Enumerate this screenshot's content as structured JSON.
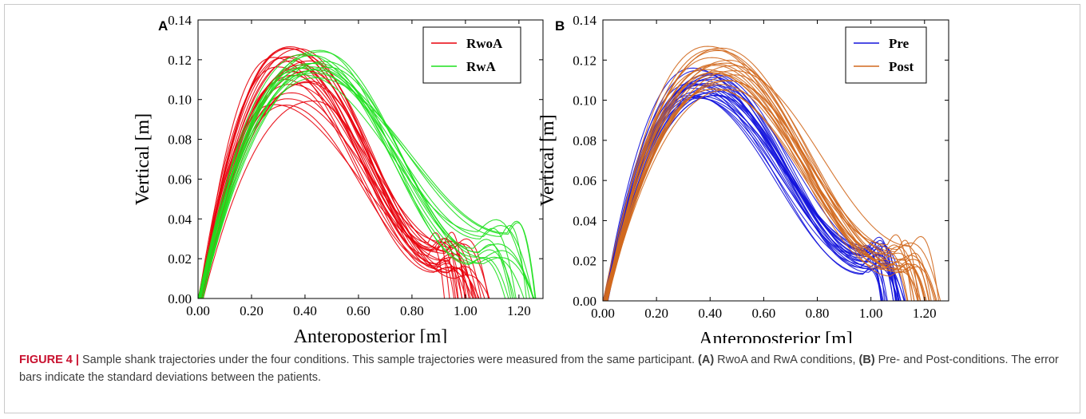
{
  "chart_data": [
    {
      "panel": "A",
      "type": "line",
      "xlabel": "Anteroposterior [m]",
      "ylabel": "Vertical [m]",
      "xlim": [
        0.0,
        1.29
      ],
      "ylim": [
        0.0,
        0.14
      ],
      "x_ticks": [
        "0.00",
        "0.20",
        "0.40",
        "0.60",
        "0.80",
        "1.00",
        "1.20"
      ],
      "y_ticks": [
        "0.00",
        "0.02",
        "0.04",
        "0.06",
        "0.08",
        "0.10",
        "0.12",
        "0.14"
      ],
      "legend_position": "top-right",
      "series": [
        {
          "name": "RwoA",
          "color": "#e8000b",
          "count": 25,
          "peak_x": [
            0.28,
            0.44
          ],
          "peak_y": [
            0.097,
            0.128
          ],
          "end_x": [
            0.9,
            1.09
          ],
          "plateau_y": [
            0.01,
            0.03
          ],
          "plateau_start": 0.83
        },
        {
          "name": "RwA",
          "color": "#1ee01e",
          "count": 15,
          "peak_x": [
            0.37,
            0.5
          ],
          "peak_y": [
            0.11,
            0.125
          ],
          "end_x": [
            1.13,
            1.28
          ],
          "plateau_y": [
            0.014,
            0.035
          ],
          "plateau_start": 0.97
        }
      ]
    },
    {
      "panel": "B",
      "type": "line",
      "xlabel": "Anteroposterior [m]",
      "ylabel": "Vertical [m]",
      "xlim": [
        0.0,
        1.29
      ],
      "ylim": [
        0.0,
        0.14
      ],
      "x_ticks": [
        "0.00",
        "0.20",
        "0.40",
        "0.60",
        "0.80",
        "1.00",
        "1.20"
      ],
      "y_ticks": [
        "0.00",
        "0.02",
        "0.04",
        "0.06",
        "0.08",
        "0.10",
        "0.12",
        "0.14"
      ],
      "legend_position": "top-right",
      "series": [
        {
          "name": "Pre",
          "color": "#1414dc",
          "count": 25,
          "peak_x": [
            0.33,
            0.43
          ],
          "peak_y": [
            0.1,
            0.12
          ],
          "end_x": [
            1.03,
            1.13
          ],
          "plateau_y": [
            0.012,
            0.028
          ],
          "plateau_start": 0.93
        },
        {
          "name": "Post",
          "color": "#d2691e",
          "count": 22,
          "peak_x": [
            0.38,
            0.5
          ],
          "peak_y": [
            0.105,
            0.127
          ],
          "end_x": [
            1.13,
            1.26
          ],
          "plateau_y": [
            0.012,
            0.03
          ],
          "plateau_start": 1.0
        }
      ]
    }
  ],
  "caption": {
    "label": "FIGURE 4 |",
    "text1": " Sample shank trajectories under the four conditions. This sample trajectories were measured from the same participant. ",
    "bold_a": "(A)",
    "text2": " RwoA and RwA conditions, ",
    "bold_b": "(B)",
    "text3": " Pre- and Post-conditions. The error bars indicate the standard deviations between the patients."
  }
}
